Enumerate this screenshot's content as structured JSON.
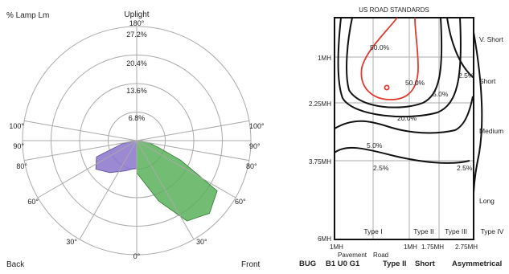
{
  "polar_chart": {
    "corner_label": "% Lamp Lm",
    "uplight_label": "Uplight",
    "back_label": "Back",
    "front_label": "Front",
    "ring_labels": [
      "6.8%",
      "13.6%",
      "20.4%",
      "27.2%"
    ],
    "top_angle_label": "180°",
    "left_angle_labels": [
      "100°",
      "90°",
      "80°",
      "60°",
      "30°"
    ],
    "right_angle_labels": [
      "100°",
      "90°",
      "80°",
      "60°",
      "30°"
    ],
    "bottom_angle_label": "0°",
    "colors": {
      "back_fill": "#8a74cc",
      "front_fill": "#5bb05b",
      "grid": "#aaaaaa"
    }
  },
  "road_chart": {
    "title": "US ROAD STANDARDS",
    "row_labels": [
      "1MH",
      "2.25MH",
      "3.75MH",
      "6MH"
    ],
    "column_labels": [
      "1MH",
      "1MH",
      "1.75MH",
      "2.75MH"
    ],
    "bottom_labels": [
      "Pavement",
      "Road"
    ],
    "right_labels": [
      "V. Short",
      "Short",
      "Medium",
      "Long"
    ],
    "type_labels": [
      "Type I",
      "Type II",
      "Type III",
      "Type IV"
    ],
    "contour_labels": [
      "50.0%",
      "50.0%",
      "2.5%",
      "5.0%",
      "20.0%",
      "5.0%",
      "2.5%",
      "2.5%"
    ],
    "colors": {
      "red_contour": "#e03a2e",
      "black_contour": "#111111",
      "grid": "#bbbbbb"
    }
  },
  "rating": {
    "bug": "BUG",
    "bug_value": "B1 U0 G1",
    "type": "Type II",
    "length": "Short",
    "symmetry": "Asymmetrical"
  }
}
